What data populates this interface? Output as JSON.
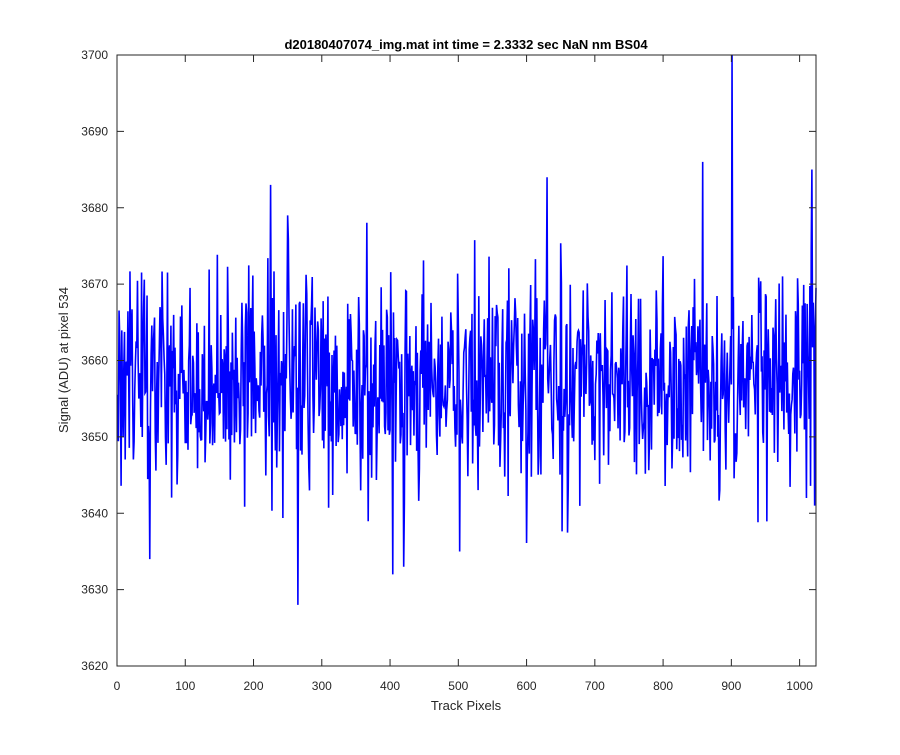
{
  "chart_data": {
    "type": "line",
    "title": "d20180407074_img.mat int time = 2.3332 sec  NaN nm BS04",
    "xlabel": "Track Pixels",
    "ylabel": "Signal (ADU) at pixel 534",
    "xlim": [
      0,
      1024
    ],
    "ylim": [
      3620,
      3700
    ],
    "xticks": [
      0,
      100,
      200,
      300,
      400,
      500,
      600,
      700,
      800,
      900,
      1000
    ],
    "yticks": [
      3620,
      3630,
      3640,
      3650,
      3660,
      3670,
      3680,
      3690,
      3700
    ],
    "grid": false,
    "legend": "none",
    "series_color": "#0000ff",
    "series": [
      {
        "x_start": 1,
        "x_step": 1,
        "n_points": 1024,
        "mean": 3657.5,
        "noise_std": 7,
        "seed": 534,
        "notable_points": [
          {
            "x": 48,
            "y": 3634
          },
          {
            "x": 225,
            "y": 3683
          },
          {
            "x": 265,
            "y": 3628
          },
          {
            "x": 404,
            "y": 3632
          },
          {
            "x": 420,
            "y": 3633
          },
          {
            "x": 502,
            "y": 3635
          },
          {
            "x": 630,
            "y": 3684
          },
          {
            "x": 858,
            "y": 3686
          },
          {
            "x": 901,
            "y": 3700
          },
          {
            "x": 1018,
            "y": 3685
          },
          {
            "x": 1022,
            "y": 3641
          }
        ]
      }
    ]
  }
}
